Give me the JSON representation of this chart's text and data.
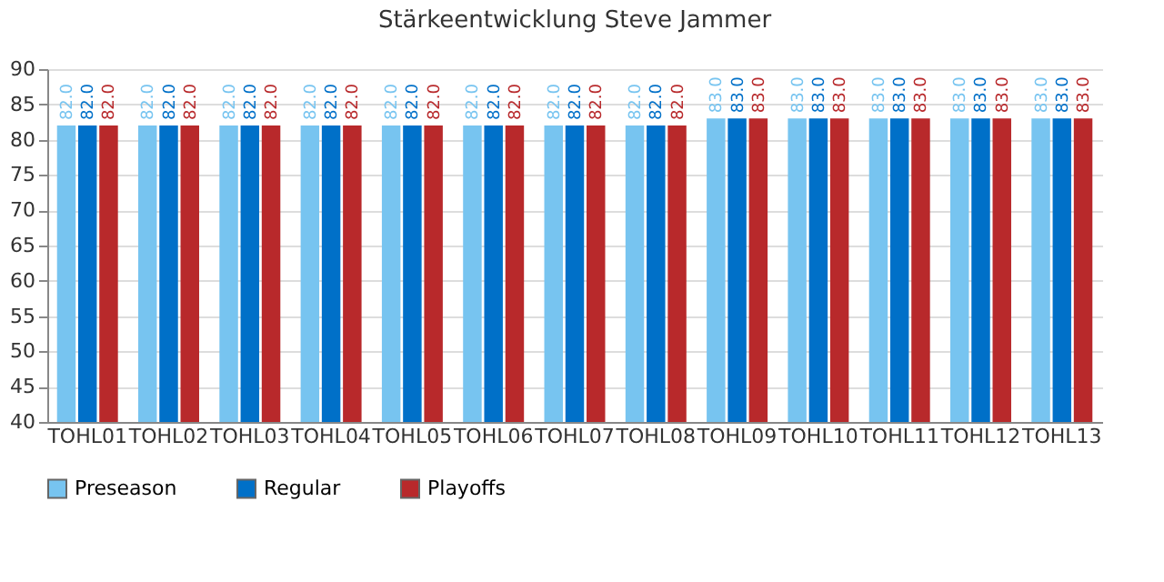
{
  "chart_data": {
    "type": "bar",
    "title": "Stärkeentwicklung Steve Jammer",
    "categories": [
      "TOHL01",
      "TOHL02",
      "TOHL03",
      "TOHL04",
      "TOHL05",
      "TOHL06",
      "TOHL07",
      "TOHL08",
      "TOHL09",
      "TOHL10",
      "TOHL11",
      "TOHL12",
      "TOHL13"
    ],
    "series": [
      {
        "name": "Preseason",
        "color": "#77c4f0",
        "values": [
          82,
          82,
          82,
          82,
          82,
          82,
          82,
          82,
          83,
          83,
          83,
          83,
          83
        ],
        "value_labels": [
          "82.0",
          "82.0",
          "82.0",
          "82.0",
          "82.0",
          "82.0",
          "82.0",
          "82.0",
          "83.0",
          "83.0",
          "83.0",
          "83.0",
          "83.0"
        ]
      },
      {
        "name": "Regular",
        "color": "#0070c8",
        "values": [
          82,
          82,
          82,
          82,
          82,
          82,
          82,
          82,
          83,
          83,
          83,
          83,
          83
        ],
        "value_labels": [
          "82.0",
          "82.0",
          "82.0",
          "82.0",
          "82.0",
          "82.0",
          "82.0",
          "82.0",
          "83.0",
          "83.0",
          "83.0",
          "83.0",
          "83.0"
        ]
      },
      {
        "name": "Playoffs",
        "color": "#b8292b",
        "values": [
          82,
          82,
          82,
          82,
          82,
          82,
          82,
          82,
          83,
          83,
          83,
          83,
          83
        ],
        "value_labels": [
          "82.0",
          "82.0",
          "82.0",
          "82.0",
          "82.0",
          "82.0",
          "82.0",
          "82.0",
          "83.0",
          "83.0",
          "83.0",
          "83.0",
          "83.0"
        ]
      }
    ],
    "ylim": [
      40,
      90
    ],
    "yticks": [
      40,
      45,
      50,
      55,
      60,
      65,
      70,
      75,
      80,
      85,
      90
    ],
    "grid": "y",
    "legend": "bottom"
  }
}
